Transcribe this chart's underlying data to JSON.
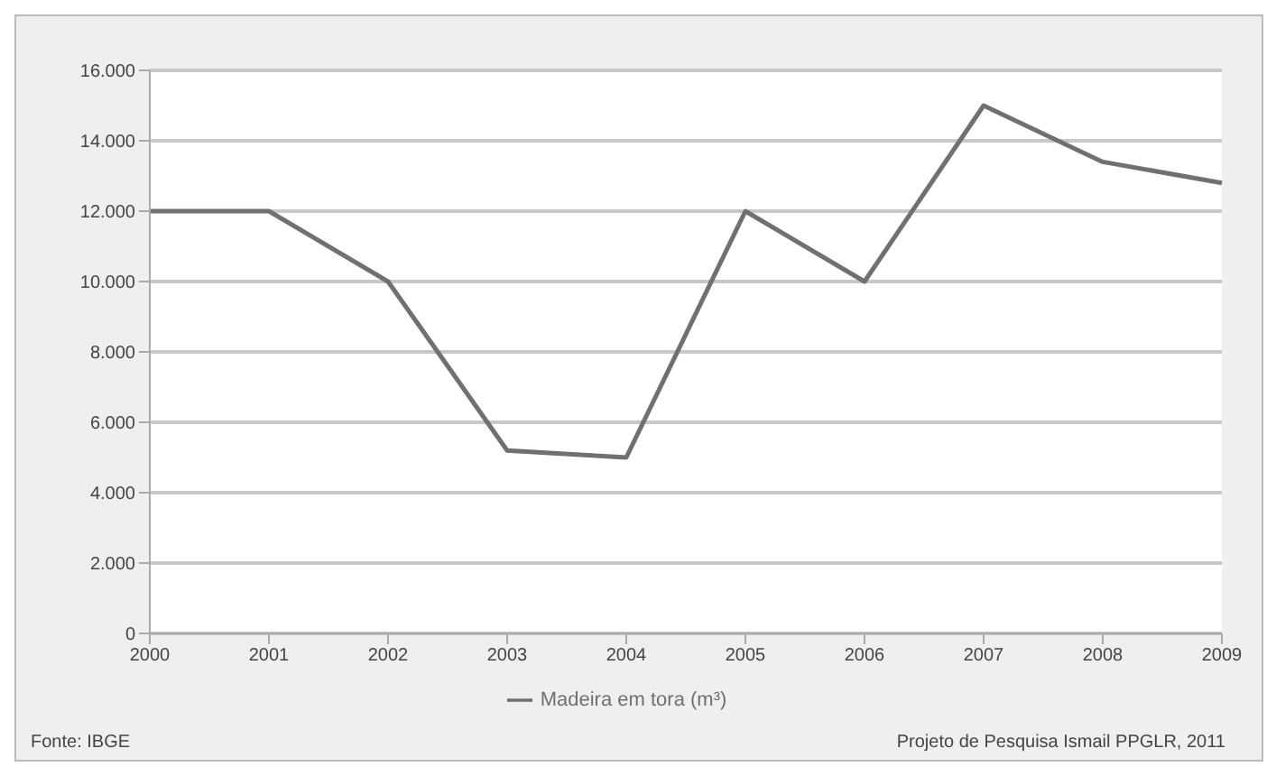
{
  "chart_data": {
    "type": "line",
    "categories": [
      "2000",
      "2001",
      "2002",
      "2003",
      "2004",
      "2005",
      "2006",
      "2007",
      "2008",
      "2009"
    ],
    "series": [
      {
        "name": "Madeira em tora (m³)",
        "color": "#707070",
        "values": [
          12000,
          12000,
          10000,
          5200,
          5000,
          12000,
          10000,
          15000,
          13400,
          12800
        ]
      }
    ],
    "ylim": [
      0,
      16000
    ],
    "yticks": [
      0,
      {
        "value": 2000,
        "label": "2.000"
      },
      {
        "value": 4000,
        "label": "4.000"
      },
      {
        "value": 6000,
        "label": "6.000"
      },
      {
        "value": 8000,
        "label": "8.000"
      },
      {
        "value": 10000,
        "label": "10.000"
      },
      {
        "value": 12000,
        "label": "12.000"
      },
      {
        "value": 14000,
        "label": "14.000"
      },
      {
        "value": 16000,
        "label": "16.000"
      }
    ],
    "grid": "y",
    "legend": "bottom",
    "marker": "none",
    "line_style": "solid",
    "annotations": [
      "Fonte: IBGE",
      "Projeto de Pesquisa Ismail PPGLR, 2011"
    ]
  }
}
